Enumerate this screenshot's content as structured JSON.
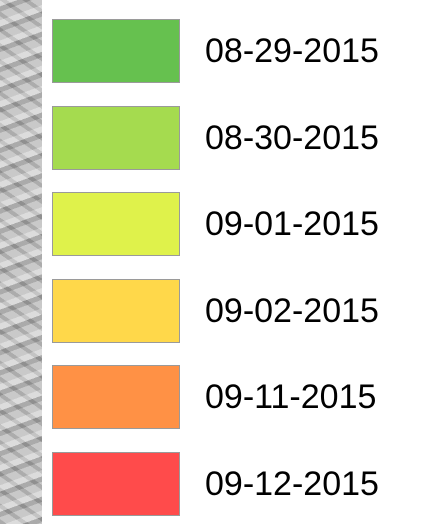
{
  "legend": {
    "items": [
      {
        "label": "08-29-2015",
        "color": "#66c14f"
      },
      {
        "label": "08-30-2015",
        "color": "#a5db4f"
      },
      {
        "label": "09-01-2015",
        "color": "#dff24b"
      },
      {
        "label": "09-02-2015",
        "color": "#ffd84a"
      },
      {
        "label": "09-11-2015",
        "color": "#ff9145"
      },
      {
        "label": "09-12-2015",
        "color": "#ff4b4b"
      }
    ]
  }
}
